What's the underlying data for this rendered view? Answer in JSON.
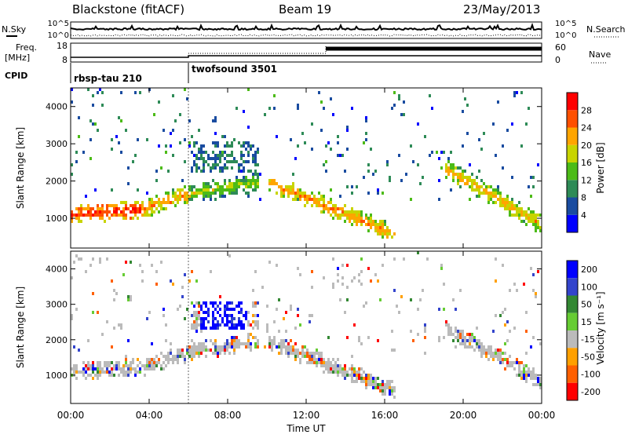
{
  "header": {
    "station": "Blackstone (fitACF)",
    "beam": "Beam 19",
    "date": "23/May/2013"
  },
  "param_panels": {
    "nsky_label": "N.Sky",
    "nsearch_label": "N.Search",
    "noise_left_ticks": [
      "10^5",
      "10^0"
    ],
    "noise_right_ticks": [
      "10^5",
      "10^0"
    ],
    "freq_label_1": "Freq.",
    "freq_label_2": "[MHz]",
    "freq_left_ticks": [
      "18",
      "8"
    ],
    "nave_label": "Nave",
    "nave_right_ticks": [
      "60",
      "0"
    ],
    "cpid_label": "CPID",
    "cpid_modes": [
      {
        "name": "rbsp-tau 210",
        "start_hour": 0
      },
      {
        "name": "twofsound 3501",
        "start_hour": 6
      }
    ]
  },
  "colors": {
    "power_scale": [
      "#0000ff",
      "#1a4ca0",
      "#2e8b57",
      "#4cbb17",
      "#c8d400",
      "#ffa500",
      "#ff5000",
      "#ff0000"
    ],
    "velocity_scale": [
      "#0000ff",
      "#3344cc",
      "#338833",
      "#66cc33",
      "#bbbbbb",
      "#ffa000",
      "#ff6000",
      "#ff0000"
    ]
  },
  "chart_data": [
    {
      "type": "heatmap",
      "name": "power",
      "ylabel": "Slant Range [km]",
      "ylim": [
        200,
        4500
      ],
      "y_ticks": [
        "1000",
        "2000",
        "3000",
        "4000"
      ],
      "colorbar_label": "Power [dB]",
      "colorbar_ticks": [
        "4",
        "8",
        "12",
        "16",
        "20",
        "24",
        "28"
      ],
      "clim": [
        0,
        30
      ]
    },
    {
      "type": "heatmap",
      "name": "velocity",
      "ylabel": "Slant Range [km]",
      "ylim": [
        200,
        4500
      ],
      "y_ticks": [
        "1000",
        "2000",
        "3000",
        "4000"
      ],
      "colorbar_label": "Velocity [m s⁻¹]",
      "colorbar_ticks": [
        "200",
        "100",
        "50",
        "15",
        "-15",
        "-50",
        "-100",
        "-200"
      ],
      "clim": [
        -200,
        200
      ]
    }
  ],
  "x_axis": {
    "label": "Time UT",
    "ticks": [
      "00:00",
      "04:00",
      "08:00",
      "12:00",
      "16:00",
      "20:00",
      "00:00"
    ],
    "xlim_hours": [
      0,
      24
    ]
  },
  "echo_bands": [
    {
      "h0": 0.0,
      "h1": 3.5,
      "r0": 1150,
      "r1": 1250,
      "p": 27
    },
    {
      "h0": 3.5,
      "h1": 6.0,
      "r0": 1250,
      "r1": 1700,
      "p": 22
    },
    {
      "h0": 6.0,
      "h1": 9.5,
      "r0": 1700,
      "r1": 2000,
      "p": 16
    },
    {
      "h0": 10.0,
      "h1": 16.5,
      "r0": 2000,
      "r1": 600,
      "p": 22
    },
    {
      "h0": 19.0,
      "h1": 24.0,
      "r0": 2400,
      "r1": 850,
      "p": 20
    }
  ]
}
